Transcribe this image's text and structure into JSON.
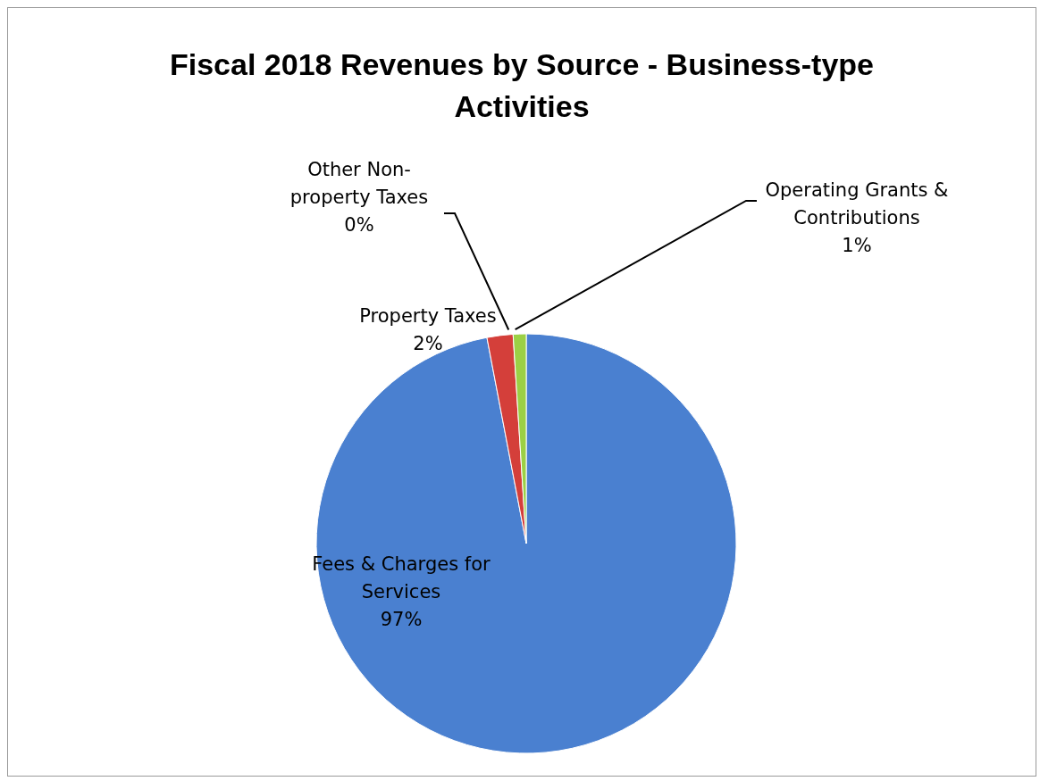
{
  "chart_data": {
    "type": "pie",
    "title": "Fiscal 2018 Revenues by Source - Business-type Activities",
    "categories": [
      "Fees & Charges for Services",
      "Property Taxes",
      "Other Non-property Taxes",
      "Operating Grants & Contributions"
    ],
    "values": [
      97,
      2,
      0,
      1
    ],
    "value_labels": [
      "97%",
      "2%",
      "0%",
      "1%"
    ],
    "colors": [
      "#4a80d0",
      "#d43f3a",
      "#8064a2",
      "#9bd045"
    ]
  }
}
